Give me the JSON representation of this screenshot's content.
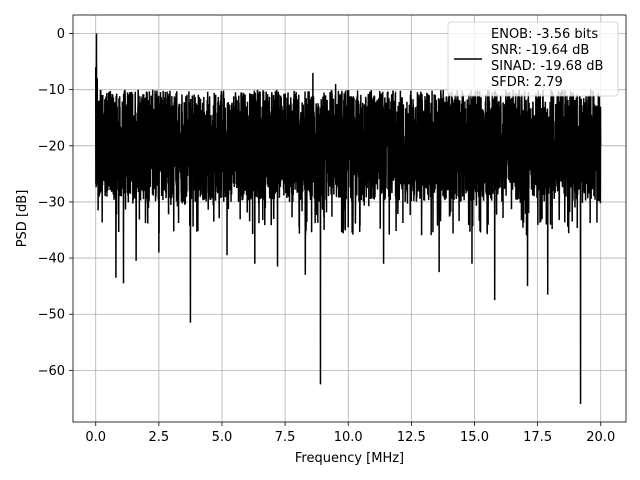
{
  "chart_data": {
    "type": "line",
    "xlabel": "Frequency [MHz]",
    "ylabel": "PSD [dB]",
    "xlim": [
      -0.9,
      21.0
    ],
    "ylim": [
      -69.2,
      3.3
    ],
    "x_ticks": [
      0.0,
      2.5,
      5.0,
      7.5,
      10.0,
      12.5,
      15.0,
      17.5,
      20.0
    ],
    "x_tick_labels": [
      "0.0",
      "2.5",
      "5.0",
      "7.5",
      "10.0",
      "12.5",
      "15.0",
      "17.5",
      "20.0"
    ],
    "y_ticks": [
      0,
      -10,
      -20,
      -30,
      -40,
      -50,
      -60
    ],
    "y_tick_labels": [
      "0",
      "−10",
      "−20",
      "−30",
      "−40",
      "−50",
      "−60"
    ],
    "grid": true,
    "legend_position": "top-right",
    "series": [
      {
        "name": "ENOB: -3.56 bits\nSNR: -19.64 dB\nSINAD: -19.68 dB\nSFDR: 2.79",
        "color": "#000000",
        "x_range": [
          0.0,
          20.0
        ],
        "noise_floor_median_db": -19.5,
        "noise_band_db": [
          -30.0,
          -10.0
        ],
        "points": [
          {
            "x": 0.0,
            "y": -6.0
          },
          {
            "x": 0.03,
            "y": 0.0
          },
          {
            "x": 0.06,
            "y": -8.0
          },
          {
            "x": 0.1,
            "y": -12.0
          },
          {
            "x": 0.8,
            "y": -43.5
          },
          {
            "x": 1.1,
            "y": -44.5
          },
          {
            "x": 1.6,
            "y": -40.5
          },
          {
            "x": 2.5,
            "y": -39.0
          },
          {
            "x": 3.75,
            "y": -51.5
          },
          {
            "x": 5.2,
            "y": -39.5
          },
          {
            "x": 6.3,
            "y": -41.0
          },
          {
            "x": 7.2,
            "y": -41.5
          },
          {
            "x": 8.3,
            "y": -43.0
          },
          {
            "x": 8.6,
            "y": -7.0
          },
          {
            "x": 8.9,
            "y": -62.5
          },
          {
            "x": 9.5,
            "y": -9.0
          },
          {
            "x": 11.4,
            "y": -41.0
          },
          {
            "x": 13.6,
            "y": -42.5
          },
          {
            "x": 14.9,
            "y": -41.0
          },
          {
            "x": 15.8,
            "y": -47.5
          },
          {
            "x": 17.1,
            "y": -45.0
          },
          {
            "x": 17.9,
            "y": -46.5
          },
          {
            "x": 19.2,
            "y": -66.0
          },
          {
            "x": 20.0,
            "y": -20.0
          }
        ]
      }
    ],
    "legend_lines": [
      "ENOB: -3.56 bits",
      "SNR: -19.64 dB",
      "SINAD: -19.68 dB",
      "SFDR: 2.79"
    ]
  }
}
